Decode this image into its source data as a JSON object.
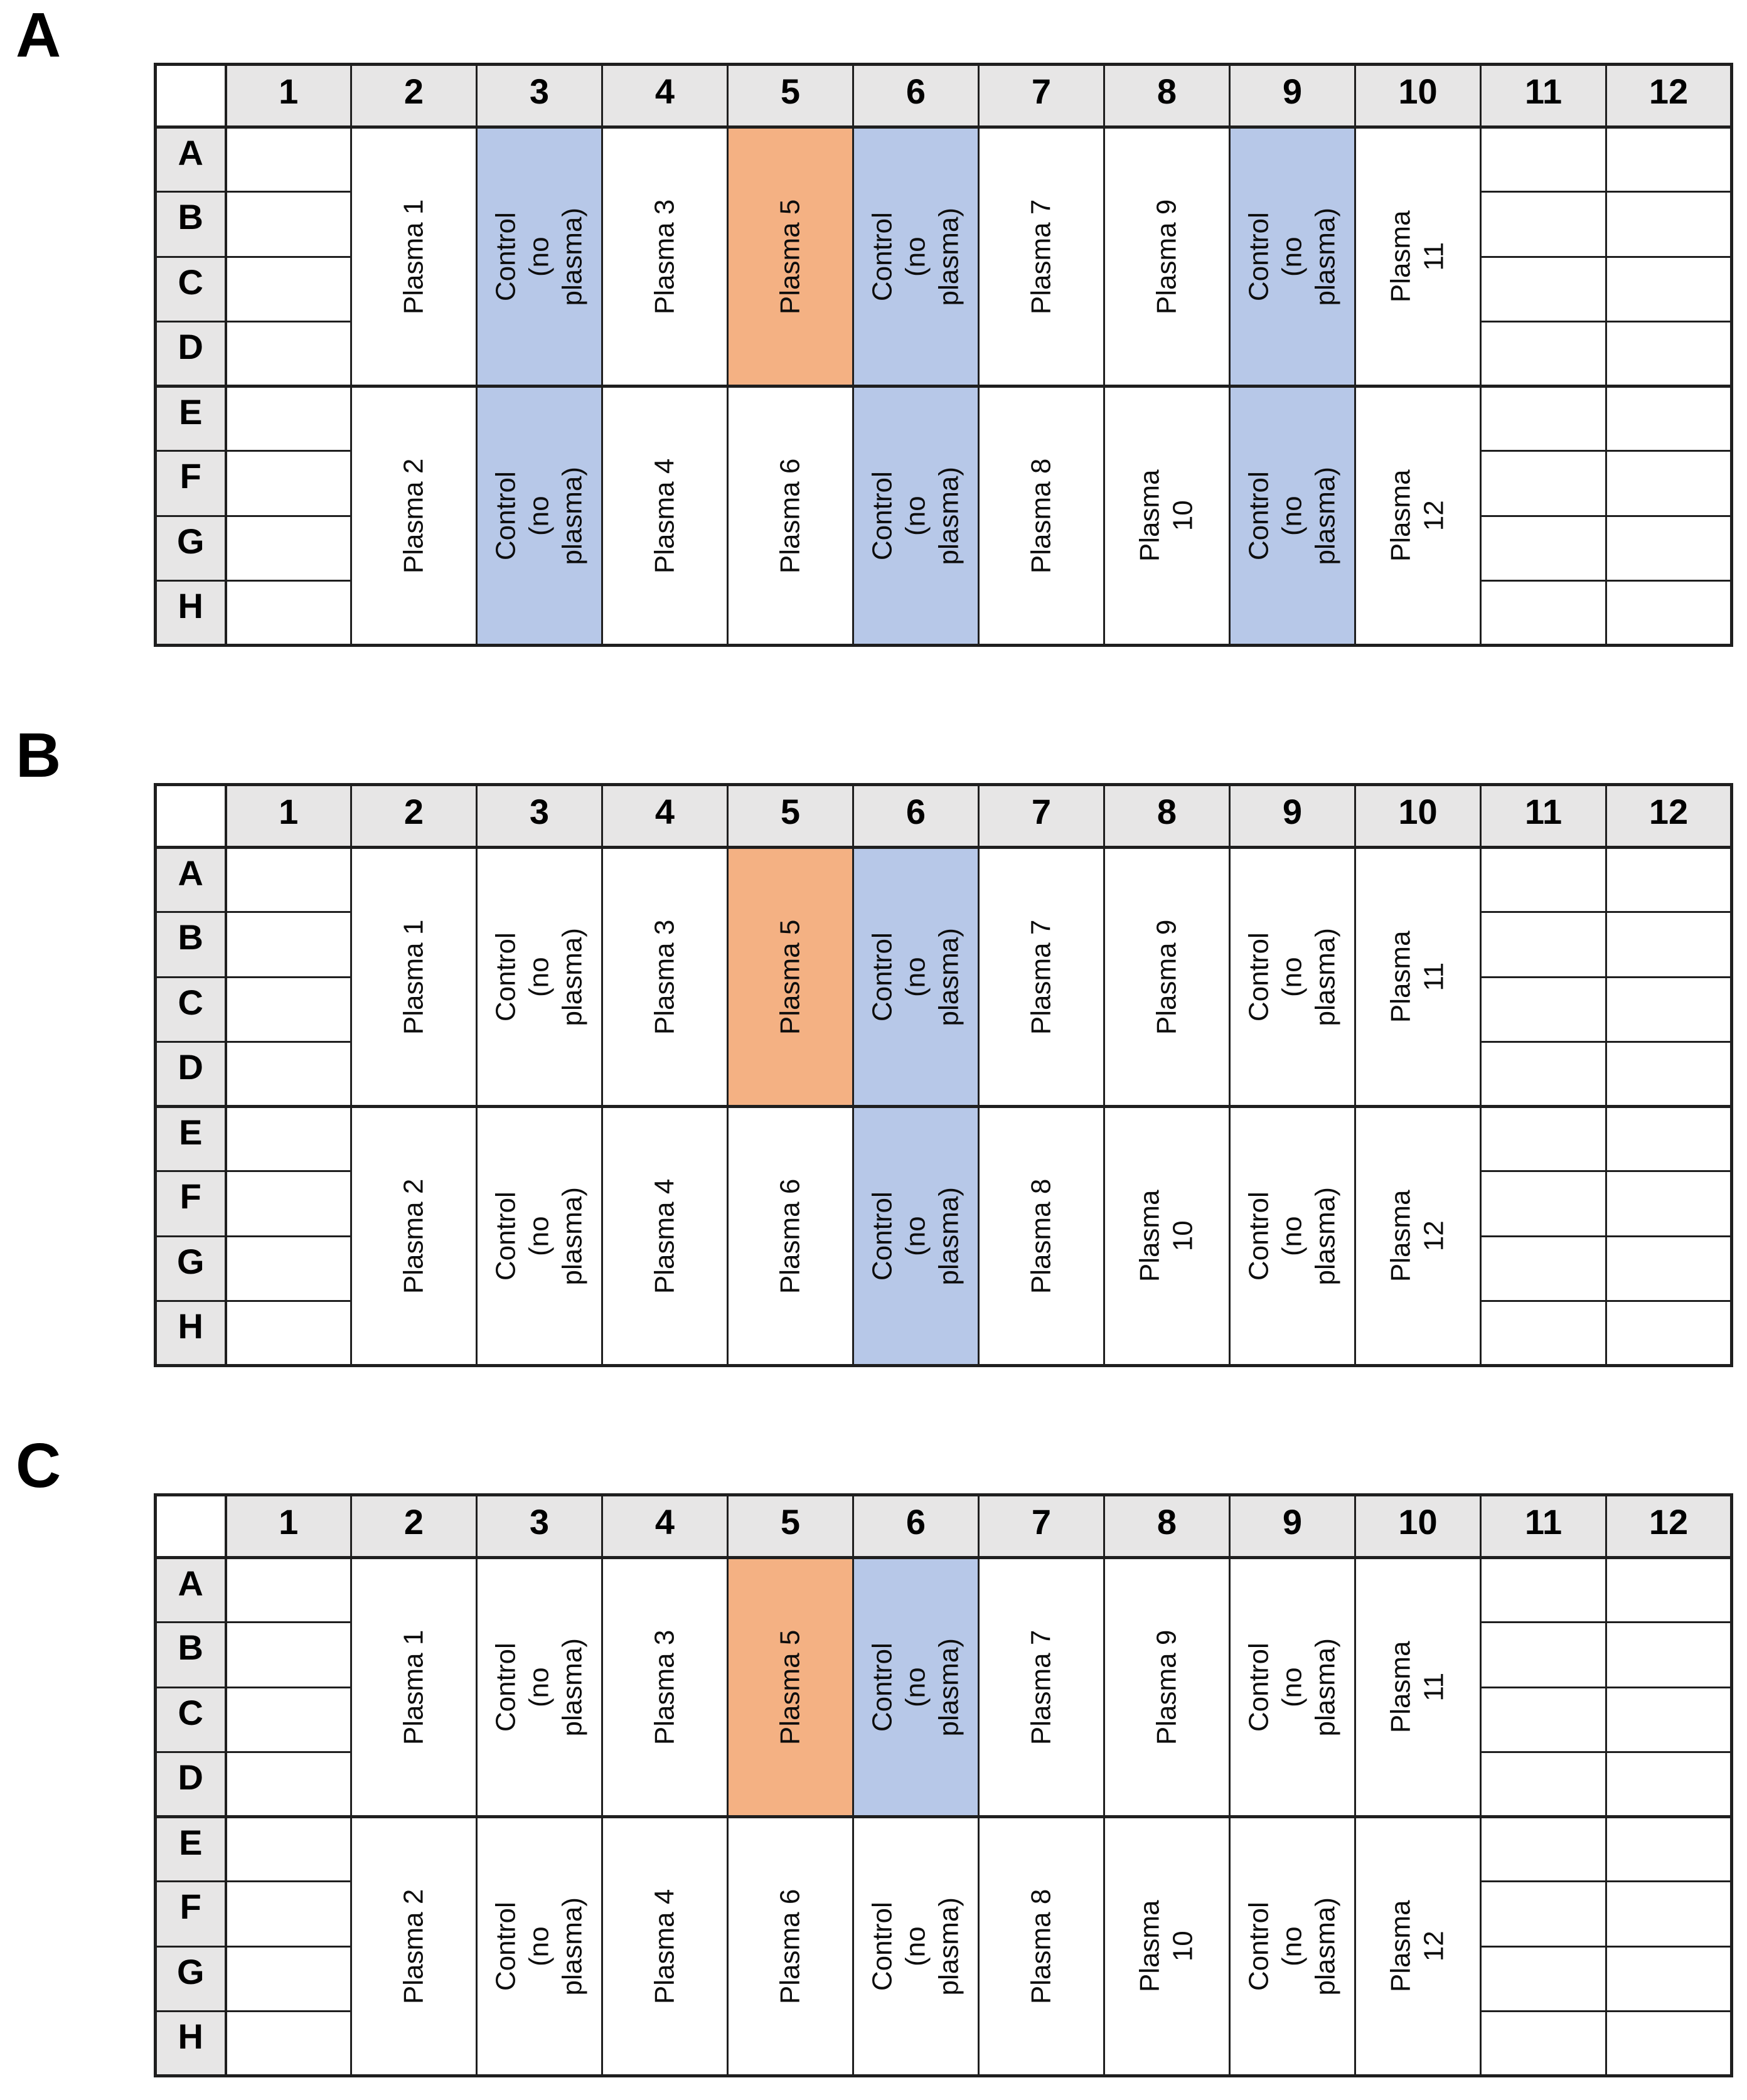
{
  "colors": {
    "blue": "#B7C8E8",
    "orange": "#F4B183",
    "white": "#FFFFFF",
    "header_gray": "#E7E6E6",
    "border": "#1F1F1F"
  },
  "plate": {
    "column_headers": [
      "1",
      "2",
      "3",
      "4",
      "5",
      "6",
      "7",
      "8",
      "9",
      "10",
      "11",
      "12"
    ],
    "row_headers": [
      "A",
      "B",
      "C",
      "D",
      "E",
      "F",
      "G",
      "H"
    ],
    "empty_columns": [
      "1",
      "11",
      "12"
    ]
  },
  "panels": [
    {
      "label": "A",
      "top_half": [
        {
          "column": "2",
          "text": "Plasma 1",
          "fill": "white"
        },
        {
          "column": "3",
          "text": "Control\n(no plasma)",
          "fill": "blue"
        },
        {
          "column": "4",
          "text": "Plasma 3",
          "fill": "white"
        },
        {
          "column": "5",
          "text": "Plasma 5",
          "fill": "orange"
        },
        {
          "column": "6",
          "text": "Control\n(no plasma)",
          "fill": "blue"
        },
        {
          "column": "7",
          "text": "Plasma 7",
          "fill": "white"
        },
        {
          "column": "8",
          "text": "Plasma 9",
          "fill": "white"
        },
        {
          "column": "9",
          "text": "Control\n(no plasma)",
          "fill": "blue"
        },
        {
          "column": "10",
          "text": "Plasma 11",
          "fill": "white"
        }
      ],
      "bottom_half": [
        {
          "column": "2",
          "text": "Plasma 2",
          "fill": "white"
        },
        {
          "column": "3",
          "text": "Control\n(no plasma)",
          "fill": "blue"
        },
        {
          "column": "4",
          "text": "Plasma 4",
          "fill": "white"
        },
        {
          "column": "5",
          "text": "Plasma 6",
          "fill": "white"
        },
        {
          "column": "6",
          "text": "Control\n(no plasma)",
          "fill": "blue"
        },
        {
          "column": "7",
          "text": "Plasma 8",
          "fill": "white"
        },
        {
          "column": "8",
          "text": "Plasma 10",
          "fill": "white"
        },
        {
          "column": "9",
          "text": "Control\n(no plasma)",
          "fill": "blue"
        },
        {
          "column": "10",
          "text": "Plasma 12",
          "fill": "white"
        }
      ]
    },
    {
      "label": "B",
      "top_half": [
        {
          "column": "2",
          "text": "Plasma 1",
          "fill": "white"
        },
        {
          "column": "3",
          "text": "Control\n(no plasma)",
          "fill": "white"
        },
        {
          "column": "4",
          "text": "Plasma 3",
          "fill": "white"
        },
        {
          "column": "5",
          "text": "Plasma 5",
          "fill": "orange"
        },
        {
          "column": "6",
          "text": "Control\n(no plasma)",
          "fill": "blue"
        },
        {
          "column": "7",
          "text": "Plasma 7",
          "fill": "white"
        },
        {
          "column": "8",
          "text": "Plasma 9",
          "fill": "white"
        },
        {
          "column": "9",
          "text": "Control\n(no plasma)",
          "fill": "white"
        },
        {
          "column": "10",
          "text": "Plasma 11",
          "fill": "white"
        }
      ],
      "bottom_half": [
        {
          "column": "2",
          "text": "Plasma 2",
          "fill": "white"
        },
        {
          "column": "3",
          "text": "Control\n(no plasma)",
          "fill": "white"
        },
        {
          "column": "4",
          "text": "Plasma 4",
          "fill": "white"
        },
        {
          "column": "5",
          "text": "Plasma 6",
          "fill": "white"
        },
        {
          "column": "6",
          "text": "Control\n(no plasma)",
          "fill": "blue"
        },
        {
          "column": "7",
          "text": "Plasma 8",
          "fill": "white"
        },
        {
          "column": "8",
          "text": "Plasma 10",
          "fill": "white"
        },
        {
          "column": "9",
          "text": "Control\n(no plasma)",
          "fill": "white"
        },
        {
          "column": "10",
          "text": "Plasma 12",
          "fill": "white"
        }
      ]
    },
    {
      "label": "C",
      "top_half": [
        {
          "column": "2",
          "text": "Plasma 1",
          "fill": "white"
        },
        {
          "column": "3",
          "text": "Control\n(no plasma)",
          "fill": "white"
        },
        {
          "column": "4",
          "text": "Plasma 3",
          "fill": "white"
        },
        {
          "column": "5",
          "text": "Plasma 5",
          "fill": "orange"
        },
        {
          "column": "6",
          "text": "Control\n(no plasma)",
          "fill": "blue"
        },
        {
          "column": "7",
          "text": "Plasma 7",
          "fill": "white"
        },
        {
          "column": "8",
          "text": "Plasma 9",
          "fill": "white"
        },
        {
          "column": "9",
          "text": "Control\n(no plasma)",
          "fill": "white"
        },
        {
          "column": "10",
          "text": "Plasma 11",
          "fill": "white"
        }
      ],
      "bottom_half": [
        {
          "column": "2",
          "text": "Plasma 2",
          "fill": "white"
        },
        {
          "column": "3",
          "text": "Control\n(no plasma)",
          "fill": "white"
        },
        {
          "column": "4",
          "text": "Plasma 4",
          "fill": "white"
        },
        {
          "column": "5",
          "text": "Plasma 6",
          "fill": "white"
        },
        {
          "column": "6",
          "text": "Control\n(no plasma)",
          "fill": "white"
        },
        {
          "column": "7",
          "text": "Plasma 8",
          "fill": "white"
        },
        {
          "column": "8",
          "text": "Plasma 10",
          "fill": "white"
        },
        {
          "column": "9",
          "text": "Control\n(no plasma)",
          "fill": "white"
        },
        {
          "column": "10",
          "text": "Plasma 12",
          "fill": "white"
        }
      ]
    }
  ]
}
